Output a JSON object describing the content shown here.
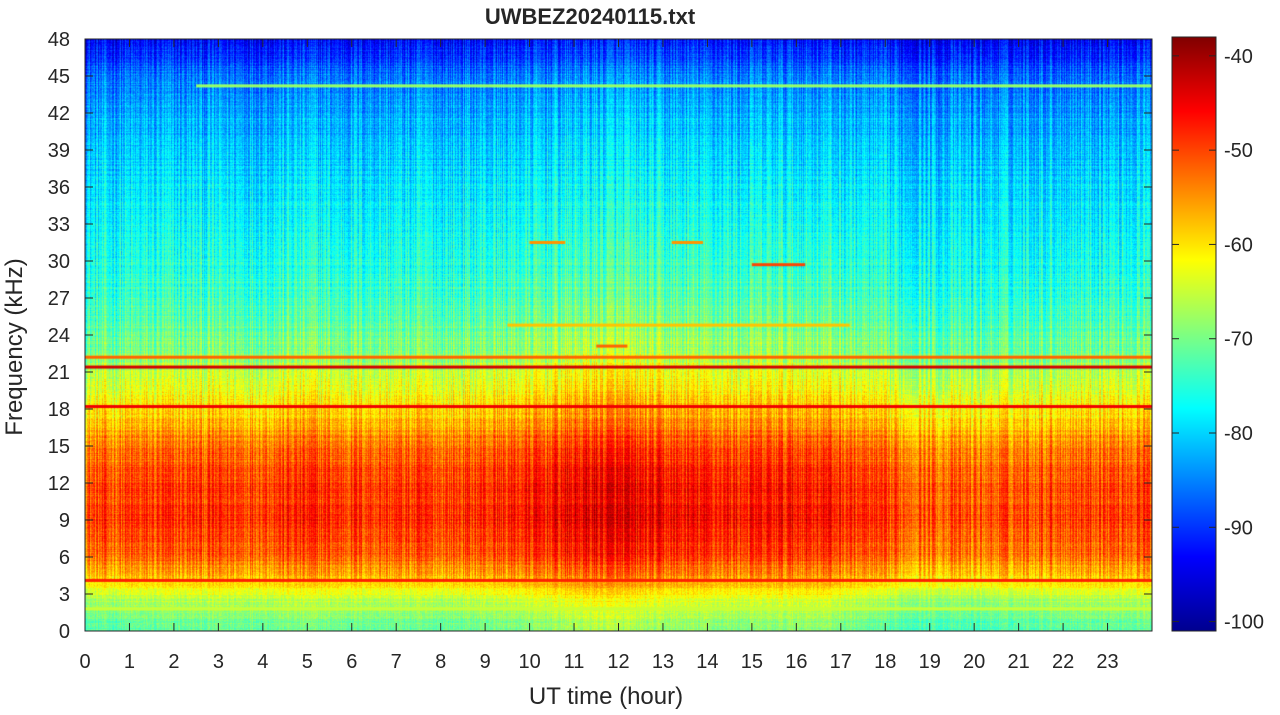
{
  "chart_data": {
    "type": "heatmap",
    "title": "UWBEZ20240115.txt",
    "xlabel": "UT time (hour)",
    "ylabel": "Frequency (kHz)",
    "x_ticks": [
      0,
      1,
      2,
      3,
      4,
      5,
      6,
      7,
      8,
      9,
      10,
      11,
      12,
      13,
      14,
      15,
      16,
      17,
      18,
      19,
      20,
      21,
      22,
      23
    ],
    "y_ticks": [
      0,
      3,
      6,
      9,
      12,
      15,
      18,
      21,
      24,
      27,
      30,
      33,
      36,
      39,
      42,
      45,
      48
    ],
    "xlim": [
      0,
      24
    ],
    "ylim": [
      0,
      48
    ],
    "colorbar": {
      "colormap": "jet",
      "range": [
        -101,
        -38
      ],
      "ticks": [
        -100,
        -90,
        -80,
        -70,
        -60,
        -50,
        -40
      ]
    },
    "frequency_profile_db": [
      {
        "f_khz": 0,
        "db": -72
      },
      {
        "f_khz": 1,
        "db": -70
      },
      {
        "f_khz": 2,
        "db": -68
      },
      {
        "f_khz": 3.5,
        "db": -62
      },
      {
        "f_khz": 4.5,
        "db": -58
      },
      {
        "f_khz": 6,
        "db": -52
      },
      {
        "f_khz": 9,
        "db": -49
      },
      {
        "f_khz": 12,
        "db": -50
      },
      {
        "f_khz": 15,
        "db": -53
      },
      {
        "f_khz": 17,
        "db": -58
      },
      {
        "f_khz": 19,
        "db": -62
      },
      {
        "f_khz": 21,
        "db": -66
      },
      {
        "f_khz": 23,
        "db": -70
      },
      {
        "f_khz": 25,
        "db": -72
      },
      {
        "f_khz": 30,
        "db": -76
      },
      {
        "f_khz": 36,
        "db": -79
      },
      {
        "f_khz": 42,
        "db": -83
      },
      {
        "f_khz": 45,
        "db": -86
      },
      {
        "f_khz": 48,
        "db": -93
      }
    ],
    "time_profile_offset_db": [
      {
        "t_hour": 0,
        "db": -1
      },
      {
        "t_hour": 2,
        "db": 0
      },
      {
        "t_hour": 5,
        "db": 1
      },
      {
        "t_hour": 8,
        "db": 0
      },
      {
        "t_hour": 10,
        "db": 2
      },
      {
        "t_hour": 11.5,
        "db": 5
      },
      {
        "t_hour": 13,
        "db": 3
      },
      {
        "t_hour": 15,
        "db": 2
      },
      {
        "t_hour": 16.5,
        "db": 3
      },
      {
        "t_hour": 18,
        "db": -1
      },
      {
        "t_hour": 20,
        "db": -2
      },
      {
        "t_hour": 22,
        "db": 0
      },
      {
        "t_hour": 24,
        "db": 0
      }
    ],
    "narrowband_lines": [
      {
        "f_khz": 4.1,
        "db": -48,
        "t_start": 0,
        "t_end": 24
      },
      {
        "f_khz": 18.2,
        "db": -45,
        "t_start": 0,
        "t_end": 24
      },
      {
        "f_khz": 21.4,
        "db": -43,
        "t_start": 0,
        "t_end": 24
      },
      {
        "f_khz": 22.2,
        "db": -52,
        "t_start": 0,
        "t_end": 24
      },
      {
        "f_khz": 24.8,
        "db": -58,
        "t_start": 9.5,
        "t_end": 17.2
      },
      {
        "f_khz": 23.1,
        "db": -52,
        "t_start": 11.5,
        "t_end": 12.2
      },
      {
        "f_khz": 29.7,
        "db": -50,
        "t_start": 15,
        "t_end": 16.2
      },
      {
        "f_khz": 31.5,
        "db": -55,
        "t_start": 10,
        "t_end": 10.8
      },
      {
        "f_khz": 31.5,
        "db": -55,
        "t_start": 13.2,
        "t_end": 13.9
      },
      {
        "f_khz": 44.2,
        "db": -68,
        "t_start": 2.5,
        "t_end": 24
      },
      {
        "f_khz": 1.8,
        "db": -65,
        "t_start": 0,
        "t_end": 24
      }
    ]
  }
}
